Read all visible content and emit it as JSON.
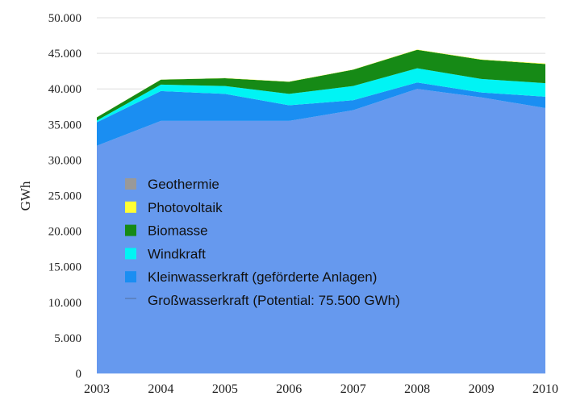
{
  "chart_data": {
    "type": "area",
    "stacked": true,
    "title": "",
    "xlabel": "",
    "ylabel": "GWh",
    "x": [
      "2003",
      "2004",
      "2005",
      "2006",
      "2007",
      "2008",
      "2009",
      "2010"
    ],
    "y_ticks": [
      "0",
      "5.000",
      "10.000",
      "15.000",
      "20.000",
      "25.000",
      "30.000",
      "35.000",
      "40.000",
      "45.000",
      "50.000"
    ],
    "ylim": [
      0,
      50000
    ],
    "grid": true,
    "legend_position": "inside-left",
    "series": [
      {
        "name": "Großwasserkraft (Potential: 75.500 GWh)",
        "color": "#6699ee",
        "values": [
          32000,
          35500,
          35500,
          35500,
          37000,
          40000,
          38800,
          37300
        ]
      },
      {
        "name": "Kleinwasserkraft (geförderte Anlagen)",
        "color": "#1a8ef2",
        "values": [
          3300,
          4200,
          3800,
          2200,
          1400,
          900,
          700,
          1600
        ]
      },
      {
        "name": "Windkraft",
        "color": "#00f4f4",
        "values": [
          250,
          900,
          1100,
          1600,
          2000,
          2000,
          1900,
          1900
        ]
      },
      {
        "name": "Biomasse",
        "color": "#168a16",
        "values": [
          450,
          700,
          1100,
          1700,
          2300,
          2600,
          2700,
          2700
        ]
      },
      {
        "name": "Photovoltaik",
        "color": "#ffff33",
        "values": [
          10,
          15,
          20,
          25,
          30,
          35,
          45,
          60
        ]
      },
      {
        "name": "Geothermie",
        "color": "#999999",
        "values": [
          0,
          0,
          0,
          0,
          0,
          0,
          0,
          0
        ]
      }
    ],
    "legend": [
      {
        "label": "Geothermie",
        "color": "#999999",
        "marker": "square"
      },
      {
        "label": "Photovoltaik",
        "color": "#ffff33",
        "marker": "square"
      },
      {
        "label": "Biomasse",
        "color": "#168a16",
        "marker": "square"
      },
      {
        "label": "Windkraft",
        "color": "#00f4f4",
        "marker": "square"
      },
      {
        "label": "Kleinwasserkraft (geförderte Anlagen)",
        "color": "#1a8ef2",
        "marker": "square"
      },
      {
        "label": "Großwasserkraft (Potential: 75.500 GWh)",
        "color": "#6699ee",
        "marker": "line"
      }
    ]
  }
}
